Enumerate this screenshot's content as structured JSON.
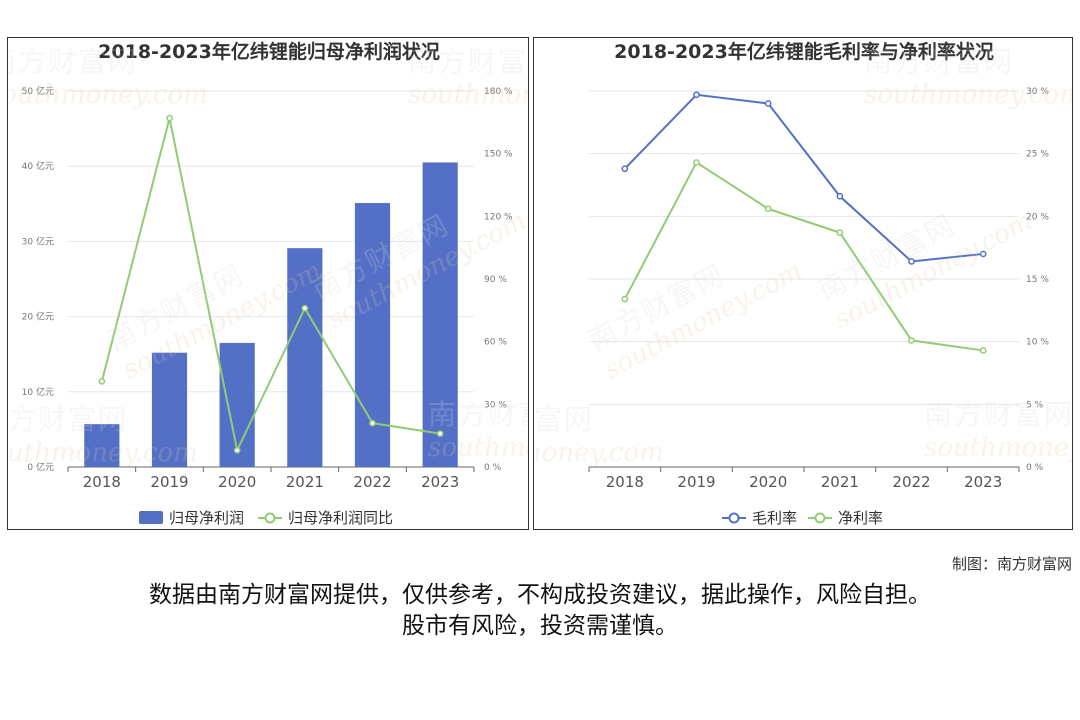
{
  "chart_data": [
    {
      "type": "bar",
      "title": "2018-2023年亿纬锂能归母净利润状况",
      "categories": [
        "2018",
        "2019",
        "2020",
        "2021",
        "2022",
        "2023"
      ],
      "series": [
        {
          "name": "归母净利润",
          "type": "bar",
          "axis": "left",
          "values": [
            5.7,
            15.2,
            16.5,
            29.1,
            35.1,
            40.5
          ],
          "color": "#5470c6"
        },
        {
          "name": "归母净利润同比",
          "type": "line",
          "axis": "right",
          "values": [
            41,
            167,
            8,
            76,
            21,
            16
          ],
          "color": "#91cc75"
        }
      ],
      "y_left": {
        "min": 0,
        "max": 50,
        "ticks": [
          "0 亿元",
          "10 亿元",
          "20 亿元",
          "30 亿元",
          "40 亿元",
          "50 亿元"
        ]
      },
      "y_right": {
        "min": 0,
        "max": 180,
        "ticks": [
          "0 %",
          "30 %",
          "60 %",
          "90 %",
          "120 %",
          "150 %",
          "180 %"
        ]
      },
      "grid": true,
      "legend_position": "bottom"
    },
    {
      "type": "line",
      "title": "2018-2023年亿纬锂能毛利率与净利率状况",
      "categories": [
        "2018",
        "2019",
        "2020",
        "2021",
        "2022",
        "2023"
      ],
      "series": [
        {
          "name": "毛利率",
          "values": [
            23.8,
            29.7,
            29.0,
            21.6,
            16.4,
            17.0
          ],
          "color": "#5470c6"
        },
        {
          "name": "净利率",
          "values": [
            13.4,
            24.3,
            20.6,
            18.7,
            10.1,
            9.3
          ],
          "color": "#91cc75"
        }
      ],
      "y_right": {
        "min": 0,
        "max": 30,
        "ticks": [
          "0 %",
          "5 %",
          "10 %",
          "15 %",
          "20 %",
          "25 %",
          "30 %"
        ]
      },
      "grid": true,
      "legend_position": "bottom"
    }
  ],
  "watermark": {
    "cn": "南方财富网",
    "en": "southmoney.com"
  },
  "credit": "制图：南方财富网",
  "disclaimer": [
    "数据由南方财富网提供，仅供参考，不构成投资建议，据此操作，风险自担。",
    "股市有风险，投资需谨慎。"
  ]
}
